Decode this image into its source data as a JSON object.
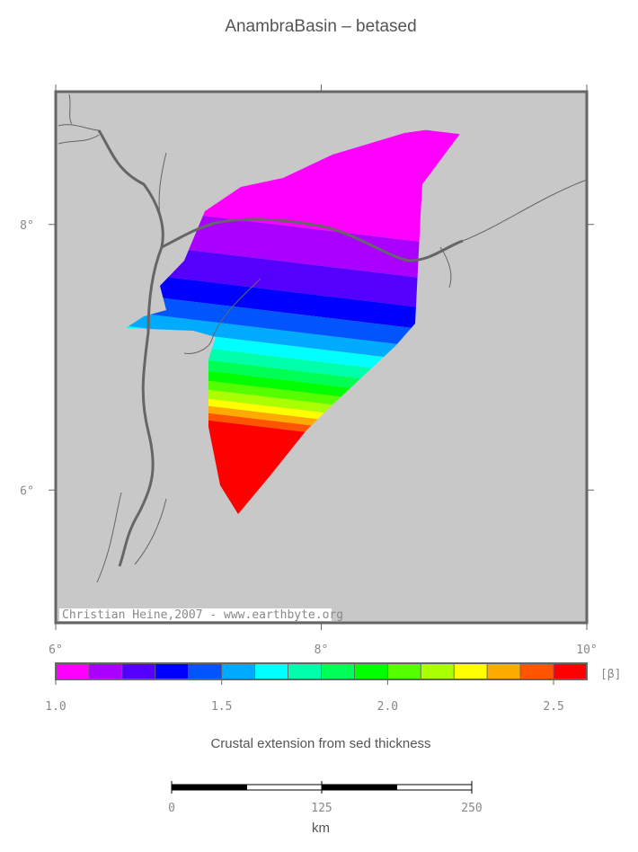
{
  "title": "AnambraBasin – betased",
  "map": {
    "xlim": [
      6,
      10
    ],
    "ylim": [
      5,
      9
    ],
    "xticks": [
      {
        "value": 6,
        "label": "6°"
      },
      {
        "value": 8,
        "label": "8°"
      },
      {
        "value": 10,
        "label": "10°"
      }
    ],
    "yticks": [
      {
        "value": 8,
        "label": "8°"
      },
      {
        "value": 6,
        "label": "6°"
      }
    ],
    "credit": "Christian Heine,2007 - www.earthbyte.org"
  },
  "colorbar": {
    "range": [
      1.0,
      2.6
    ],
    "colors": [
      "#ff00ff",
      "#aa00ff",
      "#5500ff",
      "#0000ff",
      "#0055ff",
      "#00aaff",
      "#00ffff",
      "#00ffaa",
      "#00ff55",
      "#00ff00",
      "#55ff00",
      "#aaff00",
      "#ffff00",
      "#ffaa00",
      "#ff5500",
      "#ff0000"
    ],
    "ticks": [
      {
        "value": 1.0,
        "label": "1.0"
      },
      {
        "value": 1.5,
        "label": "1.5"
      },
      {
        "value": 2.0,
        "label": "2.0"
      },
      {
        "value": 2.5,
        "label": "2.5"
      }
    ],
    "unit": "[β]",
    "caption": "Crustal extension from sed thickness"
  },
  "scalebar": {
    "range": [
      0,
      250
    ],
    "ticks": [
      0,
      125,
      250
    ],
    "unit": "km"
  }
}
